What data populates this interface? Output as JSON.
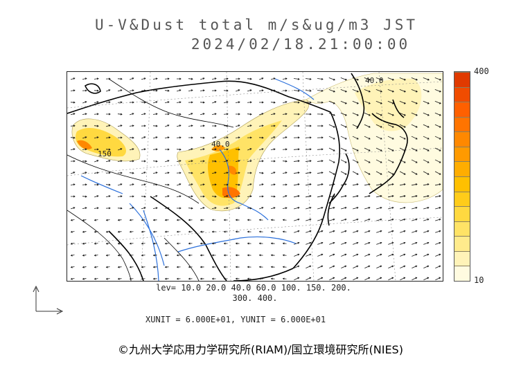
{
  "title": {
    "line1": "U-V&Dust total m/s&ug/m3 JST",
    "line2": "2024/02/18.21:00:00"
  },
  "colorbar": {
    "max_label": "400",
    "min_label": "10",
    "colors": [
      "#fffbe0",
      "#fff3b8",
      "#ffeb8c",
      "#ffe366",
      "#ffd940",
      "#ffcc1a",
      "#ffc000",
      "#ffad00",
      "#ff9a00",
      "#ff8800",
      "#ff7400",
      "#ff6000",
      "#f04c00",
      "#e03a00"
    ]
  },
  "levels": {
    "line1": "lev= 10.0 20.0 40.0 60.0 100. 150. 200.",
    "line2": "300. 400."
  },
  "units": "XUNIT = 6.000E+01, YUNIT = 6.000E+01",
  "credit": "©九州大学応用力学研究所(RIAM)/国立環境研究所(NIES)",
  "map": {
    "contour_labels": [
      "40.0",
      "40.0",
      "150"
    ],
    "colors": {
      "dust_low": "#fff7c8",
      "dust_mid": "#ffe680",
      "dust_high": "#ffc800",
      "dust_peak": "#ff7a1a",
      "coast": "#000000",
      "river": "#2a6fdb",
      "grid": "#888888"
    }
  }
}
